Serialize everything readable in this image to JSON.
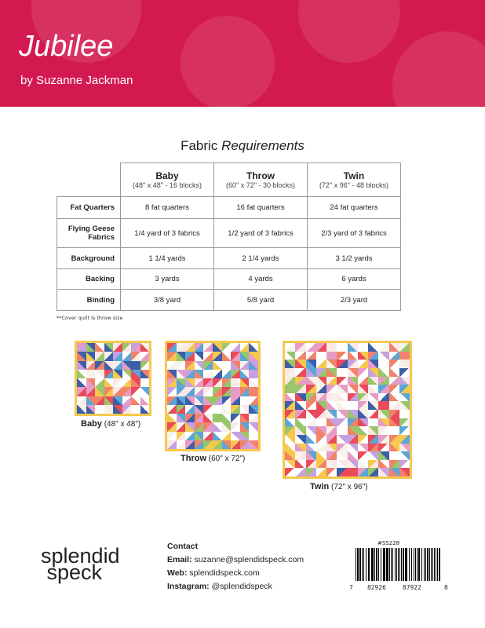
{
  "header": {
    "title": "Jubilee",
    "byline": "by Suzanne Jackman",
    "color": "#d31a50"
  },
  "fabric": {
    "title_plain": "Fabric ",
    "title_italic": "Requirements",
    "columns": [
      {
        "name": "Baby",
        "sub": "(48\" x 48\" - 16 blocks)"
      },
      {
        "name": "Throw",
        "sub": "(60\" x 72\" - 30 blocks)"
      },
      {
        "name": "Twin",
        "sub": "(72\" x 96\" - 48 blocks)"
      }
    ],
    "rows": [
      {
        "label": "Fat Quarters",
        "values": [
          "8 fat quarters",
          "16 fat quarters",
          "24 fat quarters"
        ]
      },
      {
        "label": "Flying Geese Fabrics",
        "values": [
          "1/4 yard of 3 fabrics",
          "1/2 yard of 3 fabrics",
          "2/3 yard of 3 fabrics"
        ]
      },
      {
        "label": "Background",
        "values": [
          "1 1/4 yards",
          "2 1/4 yards",
          "3 1/2 yards"
        ]
      },
      {
        "label": "Backing",
        "values": [
          "3 yards",
          "4 yards",
          "6 yards"
        ]
      },
      {
        "label": "Binding",
        "values": [
          "3/8 yard",
          "5/8 yard",
          "2/3 yard"
        ]
      }
    ],
    "note": "**Cover quilt is throw size"
  },
  "quilts": [
    {
      "name": "Baby",
      "size": "(48\" x 48\")"
    },
    {
      "name": "Throw",
      "size": "(60\" x 72\")"
    },
    {
      "name": "Twin",
      "size": "(72\" x 96\")"
    }
  ],
  "footer": {
    "logo": "splendid speck",
    "contact_heading": "Contact",
    "email_label": "Email:",
    "email": "suzanne@splendidspeck.com",
    "web_label": "Web:",
    "web": "splendidspeck.com",
    "instagram_label": "Instagram:",
    "instagram": "@splendidspeck",
    "sku": "#SS228",
    "barcode_digits": [
      "7",
      "82926",
      "87922",
      "8"
    ]
  }
}
